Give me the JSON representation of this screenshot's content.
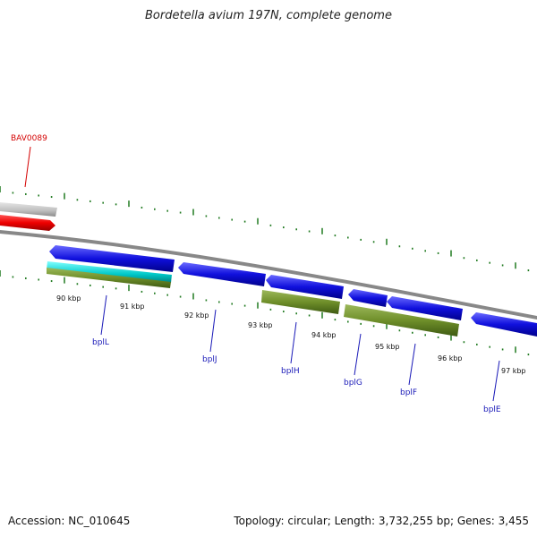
{
  "title": "Bordetella avium 197N, complete genome",
  "footer": {
    "accession": "Accession: NC_010645",
    "topology": "Topology: circular; Length: 3,732,255 bp; Genes: 3,455"
  },
  "scale_labels": [
    "90 kbp",
    "91 kbp",
    "92 kbp",
    "93 kbp",
    "94 kbp",
    "95 kbp",
    "96 kbp",
    "97 kbp"
  ],
  "gene_labels": {
    "red": "BAV0089",
    "blue": [
      "bplL",
      "bplJ",
      "bplH",
      "bplG",
      "bplF",
      "bplE"
    ]
  },
  "colors": {
    "forward_gene": "#cc0000",
    "reverse_gene": "#1010dd",
    "rna_track": "#00bbbb",
    "feature_track": "#6f8f2a",
    "gray_track": "#bbbbbb",
    "backbone": "#888888",
    "tick": "#207a20",
    "label_blue": "#1a1ab8",
    "label_red": "#d40000"
  }
}
